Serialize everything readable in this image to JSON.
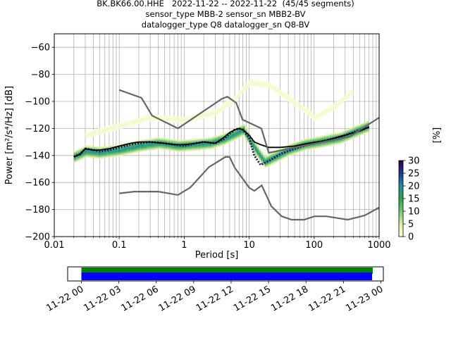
{
  "title": {
    "line1": "BK.BK66.00.HHE   2022-11-22 -- 2022-11-22  (45/45 segments)",
    "line2": "sensor_type MBB-2 sensor_sn MBB2-BV",
    "line3": "datalogger_type Q8 datalogger_sn Q8-BV"
  },
  "chart_data": [
    {
      "type": "heatmap",
      "xlabel": "Period [s]",
      "ylabel": "Power [m²/s⁴/Hz] [dB]",
      "x_scale": "log",
      "xlim": [
        0.01,
        1000
      ],
      "ylim": [
        -200,
        -50
      ],
      "x_ticks": [
        0.01,
        0.1,
        1,
        10,
        100,
        1000
      ],
      "x_tick_labels": [
        "0.01",
        "0.1",
        "1",
        "10",
        "100",
        "1000"
      ],
      "y_ticks": [
        -200,
        -180,
        -160,
        -140,
        -120,
        -100,
        -80,
        -60
      ],
      "y_tick_labels": [
        "−200",
        "−180",
        "−160",
        "−140",
        "−120",
        "−100",
        "−80",
        "−60"
      ],
      "grid": true,
      "colorbar": {
        "label": "[%]",
        "range": [
          0,
          30
        ],
        "ticks": [
          0,
          5,
          10,
          15,
          20,
          25,
          30
        ],
        "colors": [
          "#ffffe5",
          "#d9f0a3",
          "#78c679",
          "#31a354",
          "#1c9099",
          "#253494",
          "#2d004b"
        ]
      },
      "density_bands": [
        {
          "periods": [
            0.02,
            0.03,
            0.05,
            0.1,
            0.2,
            0.4,
            0.8,
            1.5,
            2.5,
            4,
            6,
            8,
            10,
            13,
            17,
            25,
            40,
            70,
            120,
            250,
            500,
            700
          ],
          "power": [
            -141,
            -137,
            -138,
            -136,
            -133,
            -131,
            -133,
            -132,
            -131,
            -128,
            -124,
            -121,
            -129,
            -137,
            -145,
            -141,
            -136,
            -132,
            -130,
            -127,
            -121,
            -118
          ],
          "spread": 4,
          "intensity": 20
        },
        {
          "periods": [
            0.03,
            0.1,
            0.3,
            1,
            3,
            6,
            10,
            20,
            40,
            100,
            200,
            400
          ],
          "power": [
            -125,
            -118,
            -112,
            -114,
            -108,
            -98,
            -86,
            -88,
            -98,
            -112,
            -104,
            -92
          ],
          "spread": 2,
          "intensity": 2
        }
      ],
      "series": [
        {
          "name": "",
          "role": "mode",
          "x": [
            0.02,
            0.025,
            0.03,
            0.04,
            0.05,
            0.07,
            0.1,
            0.15,
            0.2,
            0.3,
            0.5,
            0.7,
            1,
            1.5,
            2,
            3,
            4,
            5,
            6,
            7,
            8,
            10,
            12,
            15,
            20,
            30,
            50,
            80,
            150,
            300,
            500,
            700
          ],
          "y": [
            -141,
            -139,
            -135,
            -136,
            -137,
            -136,
            -134,
            -132,
            -131,
            -130,
            -131,
            -132,
            -133,
            -131,
            -130,
            -131,
            -128,
            -124,
            -121,
            -120,
            -121,
            -127,
            -140,
            -147,
            -144,
            -139,
            -135,
            -132,
            -129,
            -125,
            -121,
            -119
          ],
          "color": "#1a1a5e"
        },
        {
          "name": "",
          "role": "mean",
          "x": [
            0.02,
            0.025,
            0.03,
            0.04,
            0.05,
            0.07,
            0.1,
            0.15,
            0.2,
            0.3,
            0.5,
            0.7,
            1,
            1.5,
            2,
            3,
            4,
            5,
            6,
            7,
            8,
            10,
            12,
            15,
            20,
            30,
            50,
            80,
            150,
            300,
            500,
            700
          ],
          "y": [
            -141,
            -139,
            -135,
            -136,
            -136,
            -135,
            -133,
            -131,
            -130,
            -130,
            -131,
            -132,
            -132,
            -131,
            -130,
            -131,
            -127,
            -123,
            -121,
            -120,
            -121,
            -125,
            -130,
            -132,
            -134,
            -134,
            -133,
            -131,
            -129,
            -125,
            -122,
            -119
          ],
          "color": "#000000"
        },
        {
          "name": "",
          "role": "NHNM",
          "x": [
            0.1,
            0.22,
            0.32,
            0.8,
            3.8,
            4.6,
            6.3,
            7.9,
            15.4,
            20,
            354.8,
            1000
          ],
          "y": [
            -91.5,
            -97.4,
            -110.5,
            -120,
            -98,
            -96.5,
            -101,
            -113.5,
            -120,
            -138,
            -126,
            -112
          ],
          "color": "#666666"
        },
        {
          "name": "",
          "role": "NLNM",
          "x": [
            0.1,
            0.17,
            0.4,
            0.8,
            1.24,
            2.4,
            4.3,
            5.0,
            6.0,
            10.0,
            12.0,
            15.6,
            21.9,
            31.6,
            45,
            70,
            101,
            154,
            328,
            600,
            1000
          ],
          "y": [
            -168,
            -166.7,
            -166.7,
            -169.2,
            -163.7,
            -148.6,
            -141.1,
            -141.1,
            -149.0,
            -163.8,
            -166.2,
            -162.1,
            -177.5,
            -185.0,
            -187.5,
            -187.5,
            -185.0,
            -185.0,
            -187.5,
            -184.4,
            -178.5
          ],
          "color": "#666666"
        }
      ]
    },
    {
      "type": "timeline",
      "x_tick_labels": [
        "11-22 00",
        "11-22 03",
        "11-22 06",
        "11-22 09",
        "11-22 12",
        "11-22 15",
        "11-22 18",
        "11-22 21",
        "11-23 00"
      ],
      "x_ticks_hours": [
        0,
        3,
        6,
        9,
        12,
        15,
        18,
        21,
        24
      ],
      "xlim_hours": [
        -1.1,
        24.2
      ],
      "bars": [
        {
          "name": "",
          "start_hours": 0,
          "end_hours": 23.35,
          "color": "#008000"
        },
        {
          "name": "",
          "start_hours": 0,
          "end_hours": 23.3,
          "color": "#0000ff"
        }
      ]
    }
  ]
}
